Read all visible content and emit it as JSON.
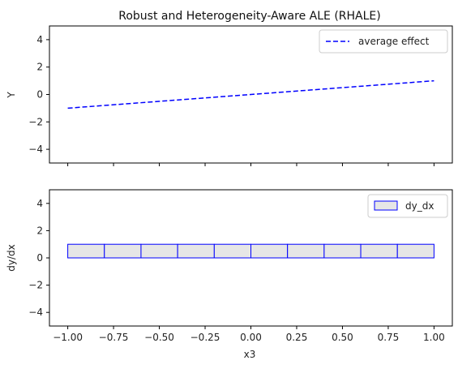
{
  "chart_data": [
    {
      "type": "line",
      "title": "Robust and Heterogeneity-Aware ALE (RHALE)",
      "xlabel": "",
      "ylabel": "Y",
      "xlim": [
        -1.1,
        1.1
      ],
      "ylim": [
        -5,
        5
      ],
      "yticks": [
        -4,
        -2,
        0,
        2,
        4
      ],
      "series": [
        {
          "name": "average effect",
          "color": "#0000ff",
          "linestyle": "dashed",
          "x": [
            -1.0,
            1.0
          ],
          "y": [
            -1.0,
            1.0
          ]
        }
      ],
      "legend": "upper-right",
      "grid": false
    },
    {
      "type": "bar",
      "title": "",
      "xlabel": "x3",
      "ylabel": "dy/dx",
      "xlim": [
        -1.1,
        1.1
      ],
      "ylim": [
        -5,
        5
      ],
      "yticks": [
        -4,
        -2,
        0,
        2,
        4
      ],
      "xticks": [
        -1.0,
        -0.75,
        -0.5,
        -0.25,
        0.0,
        0.25,
        0.5,
        0.75,
        1.0
      ],
      "xtick_labels": [
        "−1.00",
        "−0.75",
        "−0.50",
        "−0.25",
        "0.00",
        "0.25",
        "0.50",
        "0.75",
        "1.00"
      ],
      "series": [
        {
          "name": "dy_dx",
          "fill": "#e6e6e6",
          "edge": "#0000ff",
          "bins": [
            [
              -1.0,
              -0.8
            ],
            [
              -0.8,
              -0.6
            ],
            [
              -0.6,
              -0.4
            ],
            [
              -0.4,
              -0.2
            ],
            [
              -0.2,
              0.0
            ],
            [
              0.0,
              0.2
            ],
            [
              0.2,
              0.4
            ],
            [
              0.4,
              0.6
            ],
            [
              0.6,
              0.8
            ],
            [
              0.8,
              1.0
            ]
          ],
          "values": [
            1,
            1,
            1,
            1,
            1,
            1,
            1,
            1,
            1,
            1
          ]
        }
      ],
      "legend": "upper-right",
      "grid": false
    }
  ]
}
